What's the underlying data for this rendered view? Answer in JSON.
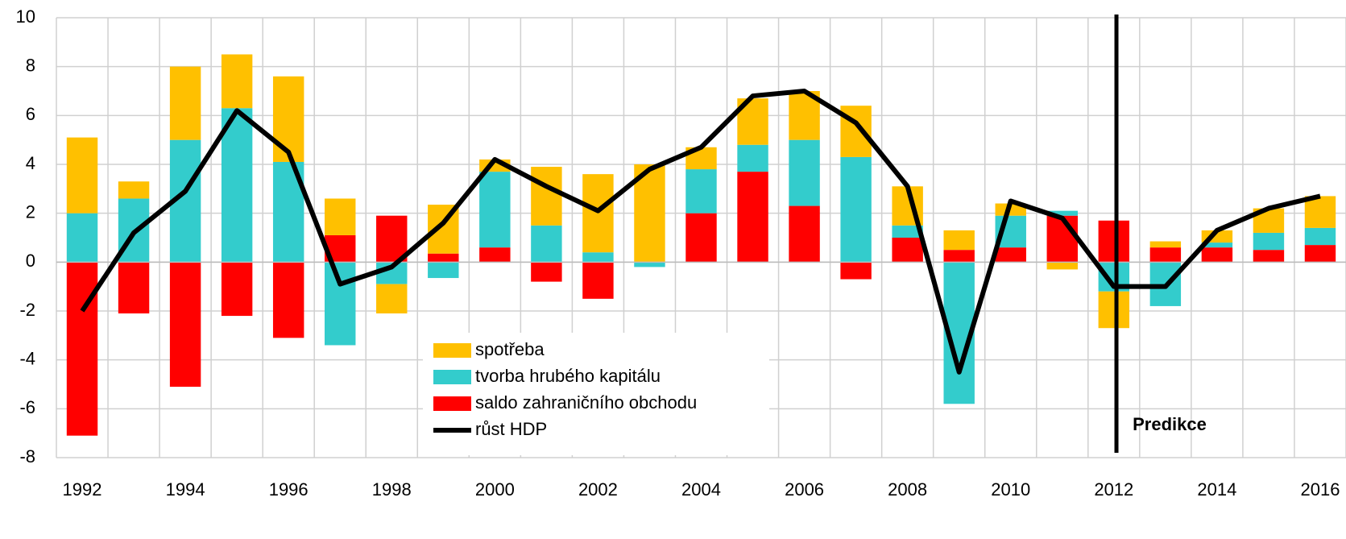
{
  "chart_data": {
    "type": "bar",
    "stacked": true,
    "categories": [
      "1992",
      null,
      "1994",
      null,
      "1996",
      null,
      "1998",
      null,
      "2000",
      null,
      "2002",
      null,
      "2004",
      null,
      "2006",
      null,
      "2008",
      null,
      "2010",
      null,
      "2012",
      null,
      "2014",
      null,
      "2016"
    ],
    "series": [
      {
        "name": "spotřeba",
        "color": "#ffc000",
        "values": [
          3.1,
          0.7,
          3.0,
          2.2,
          3.5,
          1.5,
          -1.2,
          2.0,
          0.5,
          2.4,
          3.2,
          4.0,
          0.9,
          1.9,
          2.0,
          2.1,
          1.6,
          0.8,
          0.5,
          -0.3,
          -1.5,
          0.25,
          0.5,
          1.0,
          1.3
        ]
      },
      {
        "name": "tvorba hrubého kapitálu",
        "color": "#33cccc",
        "values": [
          2.0,
          2.6,
          5.0,
          6.3,
          4.1,
          -3.4,
          -0.9,
          -0.65,
          3.1,
          1.5,
          0.4,
          -0.2,
          1.8,
          1.1,
          2.7,
          4.3,
          0.5,
          -5.8,
          1.3,
          0.2,
          -1.2,
          -1.8,
          0.2,
          0.7,
          0.7
        ]
      },
      {
        "name": "saldo zahraničního obchodu",
        "color": "#ff0000",
        "values": [
          -7.1,
          -2.1,
          -5.1,
          -2.2,
          -3.1,
          1.1,
          1.9,
          0.35,
          0.6,
          -0.8,
          -1.5,
          0,
          2.0,
          3.7,
          2.3,
          -0.7,
          1.0,
          0.5,
          0.6,
          1.9,
          1.7,
          0.6,
          0.6,
          0.5,
          0.7
        ]
      },
      {
        "name": "růst HDP",
        "color": "#000000",
        "type": "line",
        "values": [
          -2.0,
          1.2,
          2.9,
          6.2,
          4.5,
          -0.9,
          -0.2,
          1.6,
          4.2,
          3.1,
          2.1,
          3.8,
          4.7,
          6.8,
          7.0,
          5.7,
          3.1,
          -4.5,
          2.5,
          1.8,
          -1.0,
          -1.0,
          1.3,
          2.2,
          2.7
        ]
      }
    ],
    "annotation": "Predikce",
    "ylim": [
      -8,
      10
    ],
    "yticks": [
      -8,
      -6,
      -4,
      -2,
      0,
      2,
      4,
      6,
      8,
      10
    ],
    "grid": true
  }
}
